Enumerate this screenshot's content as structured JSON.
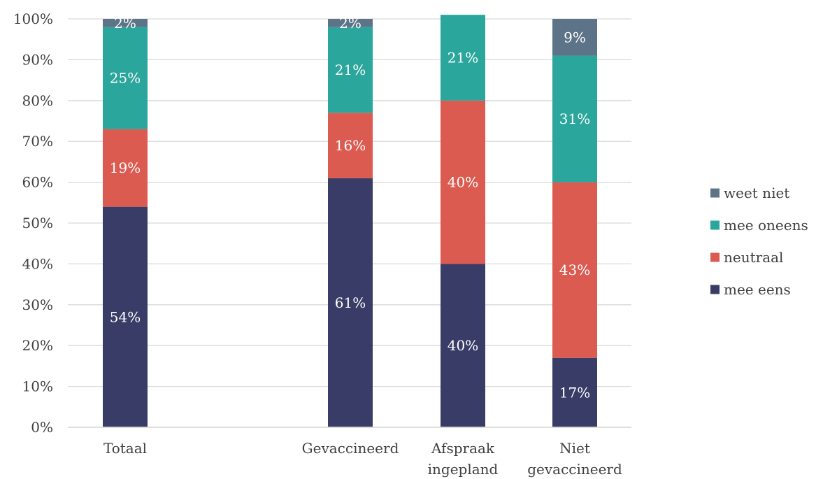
{
  "chart_data": {
    "type": "bar",
    "stacked": true,
    "categories": [
      [
        "Totaal"
      ],
      [
        "Gevaccineerd"
      ],
      [
        "Afspraak",
        "ingepland"
      ],
      [
        "Niet",
        "gevaccineerd"
      ]
    ],
    "series": [
      {
        "name": "mee eens",
        "color": "#383c66",
        "values": [
          54,
          61,
          40,
          17
        ],
        "labels": [
          "54%",
          "61%",
          "40%",
          "17%"
        ]
      },
      {
        "name": "neutraal",
        "color": "#dc5b50",
        "values": [
          19,
          16,
          40,
          43
        ],
        "labels": [
          "19%",
          "16%",
          "40%",
          "43%"
        ]
      },
      {
        "name": "mee oneens",
        "color": "#2aa69c",
        "values": [
          25,
          21,
          21,
          31
        ],
        "labels": [
          "25%",
          "21%",
          "21%",
          "31%"
        ]
      },
      {
        "name": "weet niet",
        "color": "#5d7488",
        "values": [
          2,
          2,
          0,
          9
        ],
        "labels": [
          "2%",
          "2%",
          "",
          "9%"
        ]
      }
    ],
    "ylim": [
      0,
      100
    ],
    "yticks": [
      0,
      10,
      20,
      30,
      40,
      50,
      60,
      70,
      80,
      90,
      100
    ],
    "ytick_labels": [
      "0%",
      "10%",
      "20%",
      "30%",
      "40%",
      "50%",
      "60%",
      "70%",
      "80%",
      "90%",
      "100%"
    ],
    "grid": true,
    "legend_position": "right",
    "legend_order": [
      "weet niet",
      "mee oneens",
      "neutraal",
      "mee eens"
    ],
    "title": "",
    "xlabel": "",
    "ylabel": ""
  }
}
